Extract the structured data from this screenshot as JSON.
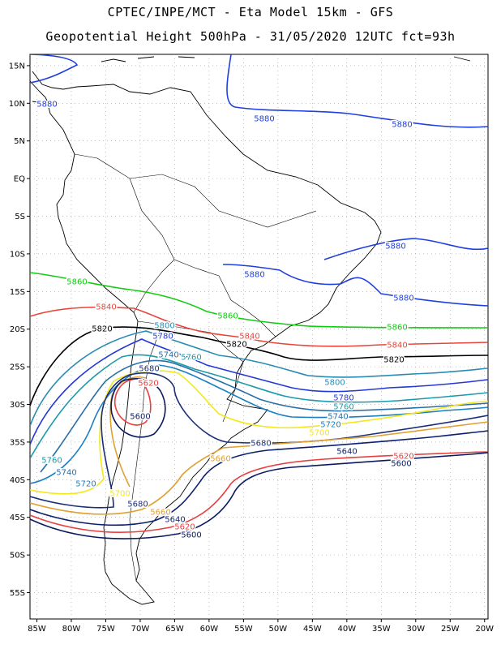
{
  "header": {
    "line1": "CPTEC/INPE/MCT -  Eta Model 15km - GFS",
    "line2": "Geopotential Height 500hPa - 31/05/2020 12UTC fct=93h"
  },
  "axes": {
    "lat_ticks": [
      "15N",
      "10N",
      "5N",
      "EQ",
      "5S",
      "10S",
      "15S",
      "20S",
      "25S",
      "30S",
      "35S",
      "40S",
      "45S",
      "50S",
      "55S"
    ],
    "lon_ticks": [
      "85W",
      "80W",
      "75W",
      "70W",
      "65W",
      "60W",
      "55W",
      "50W",
      "45W",
      "40W",
      "35W",
      "30W",
      "25W",
      "20W"
    ],
    "lon_range": [
      -86,
      -19.5
    ],
    "lat_range": [
      16.5,
      -58.5
    ],
    "grid": "dotted"
  },
  "contours": [
    {
      "value": 5880,
      "label": "5880",
      "color": "#1f3fe0"
    },
    {
      "value": 5860,
      "label": "5860",
      "color": "#11cc11"
    },
    {
      "value": 5840,
      "label": "5840",
      "color": "#e8453a"
    },
    {
      "value": 5820,
      "label": "5820",
      "color": "#000000"
    },
    {
      "value": 5800,
      "label": "5800",
      "color": "#2a8cb4"
    },
    {
      "value": 5780,
      "label": "5780",
      "color": "#2438d6"
    },
    {
      "value": 5760,
      "label": "5760",
      "color": "#1a9aaa"
    },
    {
      "value": 5740,
      "label": "5740",
      "color": "#2a6ea8"
    },
    {
      "value": 5720,
      "label": "5720",
      "color": "#1b7fc0"
    },
    {
      "value": 5700,
      "label": "5700",
      "color": "#f2e81a"
    },
    {
      "value": 5680,
      "label": "5680",
      "color": "#1a2f7a"
    },
    {
      "value": 5660,
      "label": "5660",
      "color": "#e0a030"
    },
    {
      "value": 5640,
      "label": "5640",
      "color": "#0b1f70"
    },
    {
      "value": 5620,
      "label": "5620",
      "color": "#e84040"
    },
    {
      "value": 5600,
      "label": "5600",
      "color": "#0b1a60"
    }
  ]
}
